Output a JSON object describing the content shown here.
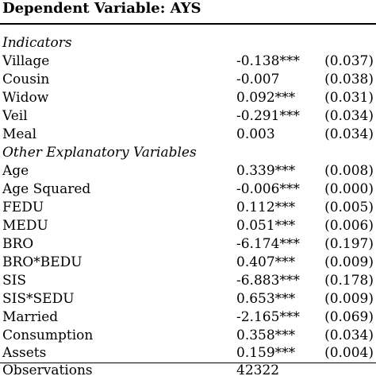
{
  "table": {
    "title": "Dependent Variable: AYS",
    "sections": [
      {
        "heading": "Indicators",
        "rows": [
          {
            "label": "Village",
            "coef": "-0.138***",
            "se": "(0.037)"
          },
          {
            "label": "Cousin",
            "coef": "-0.007",
            "se": "(0.038)"
          },
          {
            "label": "Widow",
            "coef": "0.092***",
            "se": "(0.031)"
          },
          {
            "label": "Veil",
            "coef": "-0.291***",
            "se": "(0.034)"
          },
          {
            "label": "Meal",
            "coef": "0.003",
            "se": "(0.034)"
          }
        ]
      },
      {
        "heading": "Other Explanatory Variables",
        "rows": [
          {
            "label": "Age",
            "coef": "0.339***",
            "se": "(0.008)"
          },
          {
            "label": "Age Squared",
            "coef": "-0.006***",
            "se": "(0.000)"
          },
          {
            "label": "FEDU",
            "coef": "0.112***",
            "se": "(0.005)"
          },
          {
            "label": "MEDU",
            "coef": "0.051***",
            "se": "(0.006)"
          },
          {
            "label": "BRO",
            "coef": "-6.174***",
            "se": "(0.197)"
          },
          {
            "label": "BRO*BEDU",
            "coef": "0.407***",
            "se": "(0.009)"
          },
          {
            "label": "SIS",
            "coef": "-6.883***",
            "se": "(0.178)"
          },
          {
            "label": "SIS*SEDU",
            "coef": "0.653***",
            "se": "(0.009)"
          },
          {
            "label": "Married",
            "coef": "-2.165***",
            "se": "(0.069)"
          },
          {
            "label": "Consumption",
            "coef": "0.358***",
            "se": "(0.034)"
          },
          {
            "label": "Assets",
            "coef": "0.159***",
            "se": "(0.004)"
          }
        ]
      }
    ],
    "footer": {
      "label": "Observations",
      "value": "42322"
    }
  }
}
